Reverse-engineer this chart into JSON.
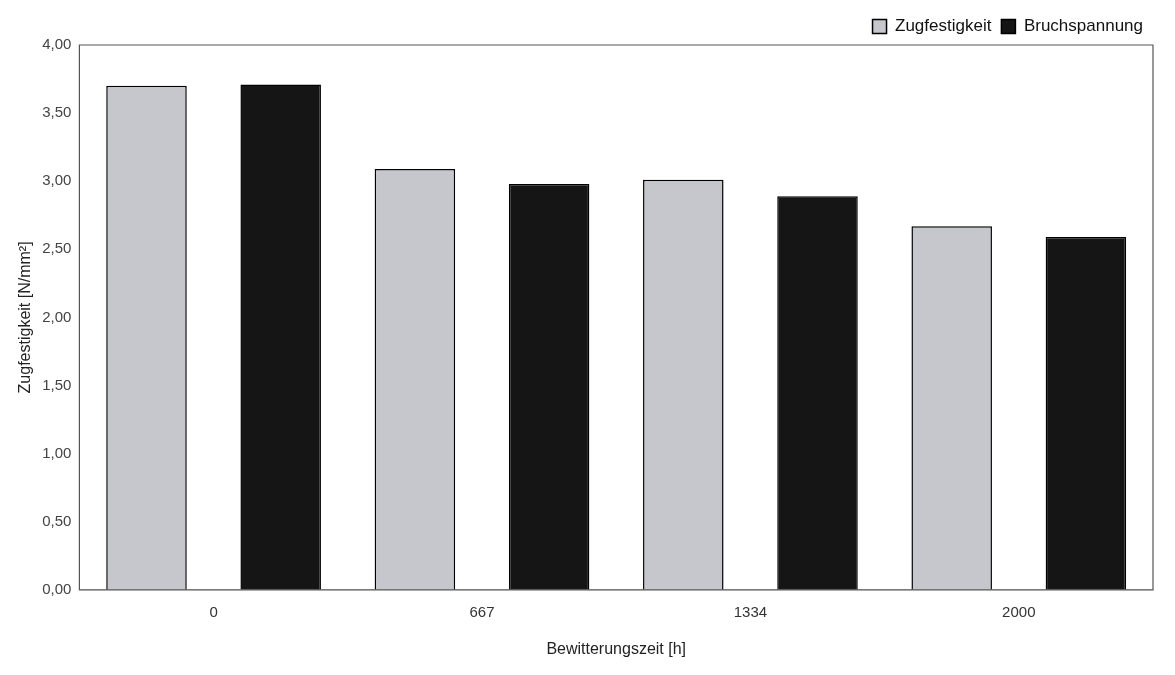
{
  "chart_data": {
    "type": "bar",
    "xlabel": "Bewitterungszeit [h]",
    "ylabel": "Zugfestigkeit [N/mm²]",
    "categories": [
      "0",
      "667",
      "1334",
      "2000"
    ],
    "series": [
      {
        "name": "Zugfestigkeit",
        "color": "#c6c7cc",
        "values": [
          3.7,
          3.09,
          3.01,
          2.67
        ]
      },
      {
        "name": "Bruchspannung",
        "color": "#151515",
        "values": [
          3.71,
          2.98,
          2.89,
          2.59
        ]
      }
    ],
    "ylim": [
      0,
      4
    ],
    "yticks": [
      {
        "value": 0,
        "label": "0,00"
      },
      {
        "value": 0.5,
        "label": "0,50"
      },
      {
        "value": 1,
        "label": "1,00"
      },
      {
        "value": 1.5,
        "label": "1,50"
      },
      {
        "value": 2,
        "label": "2,00"
      },
      {
        "value": 2.5,
        "label": "2,50"
      },
      {
        "value": 3,
        "label": "3,00"
      },
      {
        "value": 3.5,
        "label": "3,50"
      },
      {
        "value": 4,
        "label": "4,00"
      }
    ],
    "grid": false,
    "legend": "top right"
  }
}
